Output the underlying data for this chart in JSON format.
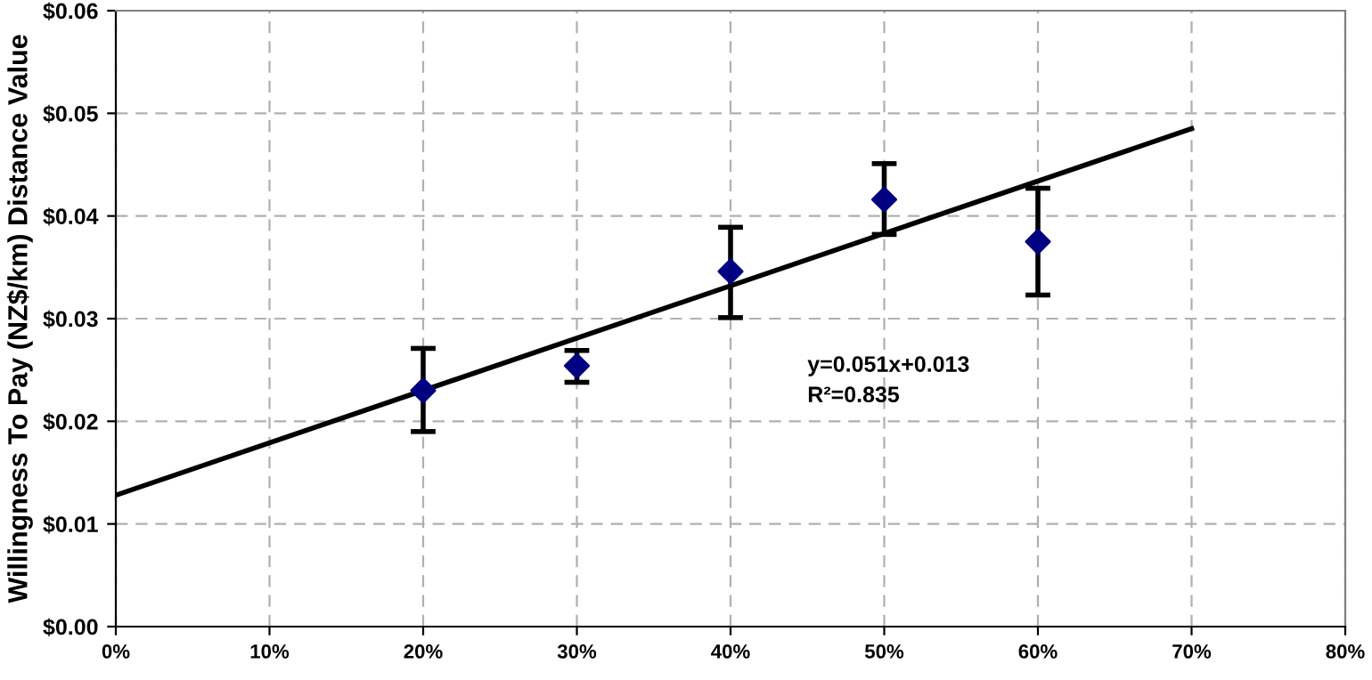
{
  "chart_data": {
    "type": "scatter",
    "ylabel": "Willingness To Pay (NZ$/km) Distance Value",
    "annotations": [
      "y=0.051x+0.013\nR²=0.835"
    ],
    "series": [
      {
        "color": "#000080",
        "marker": "diamond",
        "x": [
          20,
          30,
          40,
          50,
          60
        ],
        "values": [
          0.023,
          0.0254,
          0.0346,
          0.0416,
          0.0375
        ],
        "errors": [
          [
            0.019,
            0.0271
          ],
          [
            0.0238,
            0.0269
          ],
          [
            0.0301,
            0.0389
          ],
          [
            0.0382,
            0.0451
          ],
          [
            0.0323,
            0.0427
          ]
        ]
      },
      {
        "type": "line",
        "color": "#000000",
        "line_style": "solid",
        "x": [
          0,
          70
        ],
        "values": [
          0.0128,
          0.0485
        ]
      }
    ],
    "xlim": [
      0,
      80
    ],
    "xticks": [
      {
        "value": 0,
        "label": "0%"
      },
      {
        "value": 10,
        "label": "10%"
      },
      {
        "value": 20,
        "label": "20%"
      },
      {
        "value": 30,
        "label": "30%"
      },
      {
        "value": 40,
        "label": "40%"
      },
      {
        "value": 50,
        "label": "50%"
      },
      {
        "value": 60,
        "label": "60%"
      },
      {
        "value": 70,
        "label": "70%"
      },
      {
        "value": 80,
        "label": "80%"
      }
    ],
    "ylim": [
      0,
      0.06
    ],
    "yticks": [
      {
        "value": 0,
        "label": "$0.00"
      },
      {
        "value": 0.01,
        "label": "$0.01"
      },
      {
        "value": 0.02,
        "label": "$0.02"
      },
      {
        "value": 0.03,
        "label": "$0.03"
      },
      {
        "value": 0.04,
        "label": "$0.04"
      },
      {
        "value": 0.05,
        "label": "$0.05"
      },
      {
        "value": 0.06,
        "label": "$0.06"
      }
    ],
    "grid": true,
    "legend": false
  }
}
